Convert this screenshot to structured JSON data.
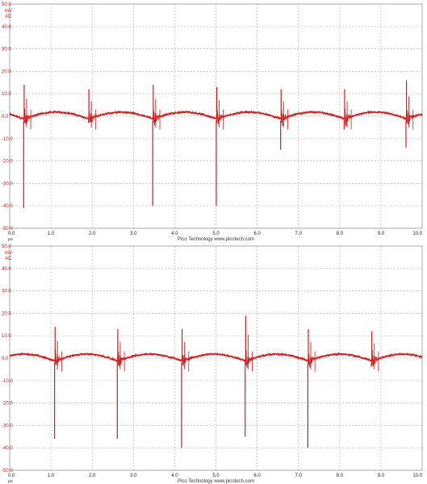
{
  "chart_data": [
    {
      "type": "line",
      "title": "",
      "xlabel": "μs",
      "ylabel": "mV",
      "y_coupling": "AC",
      "xlim": [
        0,
        10
      ],
      "ylim": [
        -50,
        50
      ],
      "x_ticks": [
        "0.0",
        "1.0",
        "2.0",
        "3.0",
        "4.0",
        "5.0",
        "6.0",
        "7.0",
        "8.0",
        "9.0",
        "10.0"
      ],
      "y_ticks": [
        "50.0",
        "40.0",
        "30.0",
        "20.0",
        "10.0",
        "0.0",
        "-10.0",
        "-20.0",
        "-30.0",
        "-40.0",
        "-50.0"
      ],
      "credit": "Pico Technology  www.picotech.com",
      "color": "#cc1f1f",
      "grid": true,
      "series": [
        {
          "spikes": [
            {
              "x": 0.35,
              "peak_high": 14,
              "peak_low": -41
            },
            {
              "x": 1.92,
              "peak_high": 12,
              "peak_low": -3
            },
            {
              "x": 3.48,
              "peak_high": 14,
              "peak_low": -40
            },
            {
              "x": 5.02,
              "peak_high": 13,
              "peak_low": -40
            },
            {
              "x": 6.58,
              "peak_high": 12,
              "peak_low": -15
            },
            {
              "x": 8.12,
              "peak_high": 12,
              "peak_low": -6
            },
            {
              "x": 9.62,
              "peak_high": 16,
              "peak_low": -14
            }
          ],
          "arch_peak": 2.5
        }
      ]
    },
    {
      "type": "line",
      "title": "",
      "xlabel": "μs",
      "ylabel": "mV",
      "y_coupling": "AC",
      "xlim": [
        0,
        10
      ],
      "ylim": [
        -50,
        50
      ],
      "x_ticks": [
        "0.0",
        "1.0",
        "2.0",
        "3.0",
        "4.0",
        "5.0",
        "6.0",
        "7.0",
        "8.0",
        "9.0",
        "10.0"
      ],
      "y_ticks": [
        "50.0",
        "40.0",
        "30.0",
        "20.0",
        "10.0",
        "0.0",
        "-10.0",
        "-20.0",
        "-30.0",
        "-40.0",
        "-50.0"
      ],
      "credit": "Pico Technology  www.picotech.com",
      "color": "#cc1f1f",
      "grid": true,
      "series": [
        {
          "spikes": [
            {
              "x": 1.1,
              "peak_high": 14,
              "peak_low": -36
            },
            {
              "x": 2.62,
              "peak_high": 13,
              "peak_low": -36
            },
            {
              "x": 4.18,
              "peak_high": 13,
              "peak_low": -40
            },
            {
              "x": 5.72,
              "peak_high": 19,
              "peak_low": -35
            },
            {
              "x": 7.24,
              "peak_high": 13,
              "peak_low": -40
            },
            {
              "x": 8.78,
              "peak_high": 12,
              "peak_low": -4
            }
          ],
          "arch_peak": 2.5
        }
      ]
    }
  ]
}
